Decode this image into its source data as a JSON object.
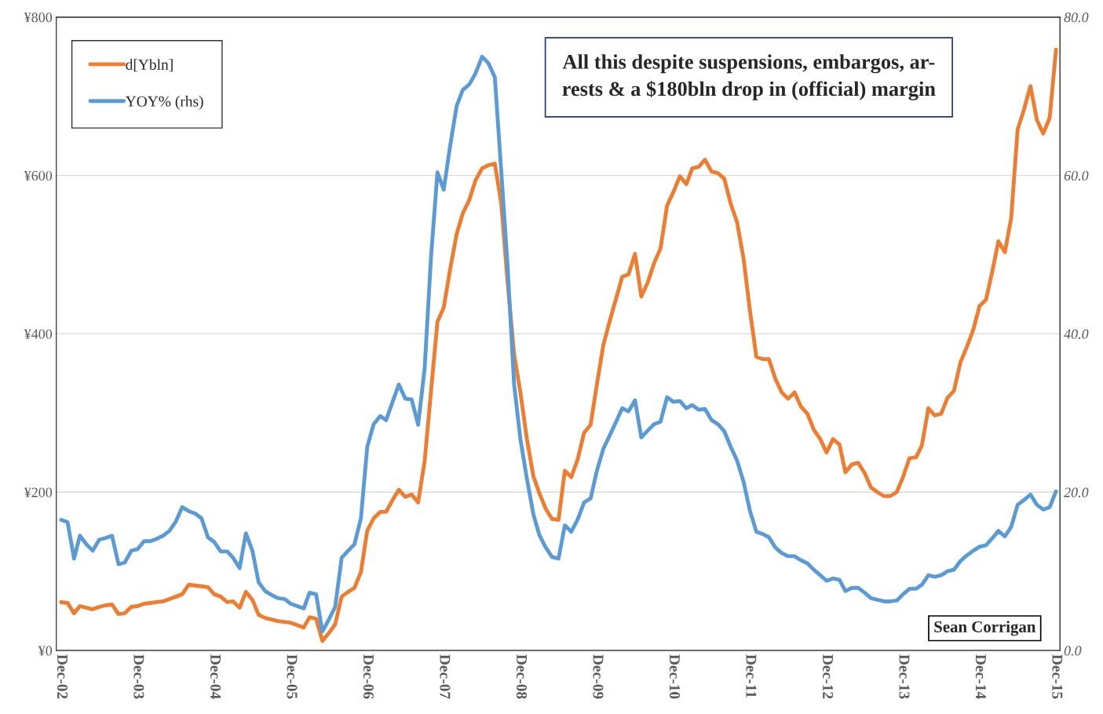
{
  "chart_data": {
    "type": "line",
    "x": [
      "2002-12",
      "2003-01",
      "2003-02",
      "2003-03",
      "2003-04",
      "2003-05",
      "2003-06",
      "2003-07",
      "2003-08",
      "2003-09",
      "2003-10",
      "2003-11",
      "2003-12",
      "2004-01",
      "2004-02",
      "2004-03",
      "2004-04",
      "2004-05",
      "2004-06",
      "2004-07",
      "2004-08",
      "2004-09",
      "2004-10",
      "2004-11",
      "2004-12",
      "2005-01",
      "2005-02",
      "2005-03",
      "2005-04",
      "2005-05",
      "2005-06",
      "2005-07",
      "2005-08",
      "2005-09",
      "2005-10",
      "2005-11",
      "2005-12",
      "2006-01",
      "2006-02",
      "2006-03",
      "2006-04",
      "2006-05",
      "2006-06",
      "2006-07",
      "2006-08",
      "2006-09",
      "2006-10",
      "2006-11",
      "2006-12",
      "2007-01",
      "2007-02",
      "2007-03",
      "2007-04",
      "2007-05",
      "2007-06",
      "2007-07",
      "2007-08",
      "2007-09",
      "2007-10",
      "2007-11",
      "2007-12",
      "2008-01",
      "2008-02",
      "2008-03",
      "2008-04",
      "2008-05",
      "2008-06",
      "2008-07",
      "2008-08",
      "2008-09",
      "2008-10",
      "2008-11",
      "2008-12",
      "2009-01",
      "2009-02",
      "2009-03",
      "2009-04",
      "2009-05",
      "2009-06",
      "2009-07",
      "2009-08",
      "2009-09",
      "2009-10",
      "2009-11",
      "2009-12",
      "2010-01",
      "2010-02",
      "2010-03",
      "2010-04",
      "2010-05",
      "2010-06",
      "2010-07",
      "2010-08",
      "2010-09",
      "2010-10",
      "2010-11",
      "2010-12",
      "2011-01",
      "2011-02",
      "2011-03",
      "2011-04",
      "2011-05",
      "2011-06",
      "2011-07",
      "2011-08",
      "2011-09",
      "2011-10",
      "2011-11",
      "2011-12",
      "2012-01",
      "2012-02",
      "2012-03",
      "2012-04",
      "2012-05",
      "2012-06",
      "2012-07",
      "2012-08",
      "2012-09",
      "2012-10",
      "2012-11",
      "2012-12",
      "2013-01",
      "2013-02",
      "2013-03",
      "2013-04",
      "2013-05",
      "2013-06",
      "2013-07",
      "2013-08",
      "2013-09",
      "2013-10",
      "2013-11",
      "2013-12",
      "2014-01",
      "2014-02",
      "2014-03",
      "2014-04",
      "2014-05",
      "2014-06",
      "2014-07",
      "2014-08",
      "2014-09",
      "2014-10",
      "2014-11",
      "2014-12",
      "2015-01",
      "2015-02",
      "2015-03",
      "2015-04",
      "2015-05",
      "2015-06",
      "2015-07",
      "2015-08",
      "2015-09",
      "2015-10",
      "2015-11",
      "2015-12"
    ],
    "series": [
      {
        "name": "d[Ybln]",
        "color": "#ed7d31",
        "values": [
          61,
          60,
          47,
          56,
          54,
          52,
          55,
          57,
          58,
          46,
          47,
          55,
          56,
          59,
          60,
          61,
          62,
          65,
          68,
          71,
          83,
          82,
          81,
          80,
          71,
          68,
          61,
          62,
          54,
          74,
          64,
          45,
          41,
          39,
          37,
          36,
          35,
          32,
          29,
          42,
          40,
          12,
          22,
          33,
          68,
          74,
          79,
          99,
          151,
          167,
          175,
          175,
          190,
          203,
          194,
          197,
          187,
          239,
          326,
          415,
          433,
          482,
          526,
          552,
          569,
          594,
          609,
          613,
          615,
          564,
          465,
          374,
          326,
          267,
          220,
          199,
          179,
          166,
          165,
          227,
          219,
          242,
          275,
          285,
          336,
          386,
          417,
          443,
          472,
          475,
          501,
          447,
          465,
          490,
          508,
          562,
          579,
          599,
          589,
          609,
          611,
          620,
          605,
          603,
          596,
          564,
          541,
          495,
          430,
          371,
          368,
          368,
          343,
          326,
          318,
          326,
          308,
          299,
          279,
          267,
          250,
          267,
          260,
          225,
          235,
          237,
          224,
          206,
          200,
          195,
          195,
          200,
          219,
          243,
          244,
          259,
          306,
          297,
          299,
          319,
          328,
          364,
          383,
          405,
          435,
          443,
          480,
          517,
          503,
          546,
          658,
          683,
          713,
          670,
          653,
          673,
          759
        ]
      },
      {
        "name": "YOY% (rhs)",
        "color": "#5b9bd5",
        "axis": "y2",
        "values": [
          16.5,
          16.2,
          11.6,
          14.5,
          13.4,
          12.6,
          14.0,
          14.2,
          14.5,
          10.9,
          11.1,
          12.6,
          12.8,
          13.8,
          13.8,
          14.1,
          14.5,
          15.1,
          16.3,
          18.1,
          17.6,
          17.3,
          16.7,
          14.3,
          13.7,
          12.5,
          12.5,
          11.7,
          10.4,
          14.8,
          12.6,
          8.6,
          7.5,
          7.0,
          6.6,
          6.5,
          5.9,
          5.6,
          5.3,
          7.3,
          7.1,
          2.4,
          3.9,
          5.5,
          11.7,
          12.6,
          13.4,
          16.7,
          25.7,
          28.6,
          29.6,
          29.1,
          31.4,
          33.6,
          31.8,
          31.7,
          28.5,
          35.6,
          49.5,
          60.4,
          58.2,
          63.8,
          68.8,
          70.8,
          71.5,
          72.9,
          75.0,
          74.2,
          72.4,
          60.4,
          48.5,
          33.6,
          26.7,
          21.7,
          17.2,
          14.6,
          13.0,
          11.8,
          11.6,
          15.8,
          15.0,
          16.6,
          18.7,
          19.2,
          22.7,
          25.5,
          27.2,
          28.8,
          30.6,
          30.2,
          31.6,
          26.9,
          27.8,
          28.6,
          28.9,
          32.0,
          31.4,
          31.5,
          30.6,
          31.0,
          30.4,
          30.5,
          29.1,
          28.6,
          27.7,
          25.7,
          24.0,
          21.3,
          17.7,
          15.0,
          14.7,
          14.3,
          13.0,
          12.3,
          11.9,
          11.9,
          11.4,
          11.0,
          10.2,
          9.5,
          8.8,
          9.1,
          8.9,
          7.5,
          7.9,
          7.9,
          7.3,
          6.6,
          6.4,
          6.2,
          6.2,
          6.3,
          7.1,
          7.8,
          7.8,
          8.3,
          9.5,
          9.3,
          9.5,
          10.0,
          10.2,
          11.3,
          12.0,
          12.6,
          13.1,
          13.3,
          14.2,
          15.1,
          14.4,
          15.6,
          18.4,
          19.0,
          19.7,
          18.4,
          17.8,
          18.1,
          20.1
        ]
      }
    ],
    "xlim": [
      "2002-11-08",
      "2015-12-20"
    ],
    "xticks": [
      {
        "value": "2002-12",
        "label": "Dec-02"
      },
      {
        "value": "2003-12",
        "label": "Dec-03"
      },
      {
        "value": "2004-12",
        "label": "Dec-04"
      },
      {
        "value": "2005-12",
        "label": "Dec-05"
      },
      {
        "value": "2006-12",
        "label": "Dec-06"
      },
      {
        "value": "2007-12",
        "label": "Dec-07"
      },
      {
        "value": "2008-12",
        "label": "Dec-08"
      },
      {
        "value": "2009-12",
        "label": "Dec-09"
      },
      {
        "value": "2010-12",
        "label": "Dec-10"
      },
      {
        "value": "2011-12",
        "label": "Dec-11"
      },
      {
        "value": "2012-12",
        "label": "Dec-12"
      },
      {
        "value": "2013-12",
        "label": "Dec-13"
      },
      {
        "value": "2014-12",
        "label": "Dec-14"
      },
      {
        "value": "2015-12",
        "label": "Dec-15"
      }
    ],
    "ylim": [
      0,
      800
    ],
    "yticks": [
      {
        "value": 0,
        "label": "¥0"
      },
      {
        "value": 200,
        "label": "¥200"
      },
      {
        "value": 400,
        "label": "¥400"
      },
      {
        "value": 600,
        "label": "¥600"
      },
      {
        "value": 800,
        "label": "¥800"
      }
    ],
    "y2lim": [
      0,
      80
    ],
    "y2ticks": [
      {
        "value": 0,
        "label": "0.0"
      },
      {
        "value": 20,
        "label": "20.0"
      },
      {
        "value": 40,
        "label": "40.0"
      },
      {
        "value": 60,
        "label": "60.0"
      },
      {
        "value": 80,
        "label": "80.0"
      }
    ],
    "annotations": [
      "All this despite suspensions, embargos, ar-\nrests & a $180bln drop in (official) margin",
      "Sean Corrigan"
    ],
    "grid": "y",
    "legend": "top left",
    "line_style": "solid",
    "marker": "none"
  }
}
